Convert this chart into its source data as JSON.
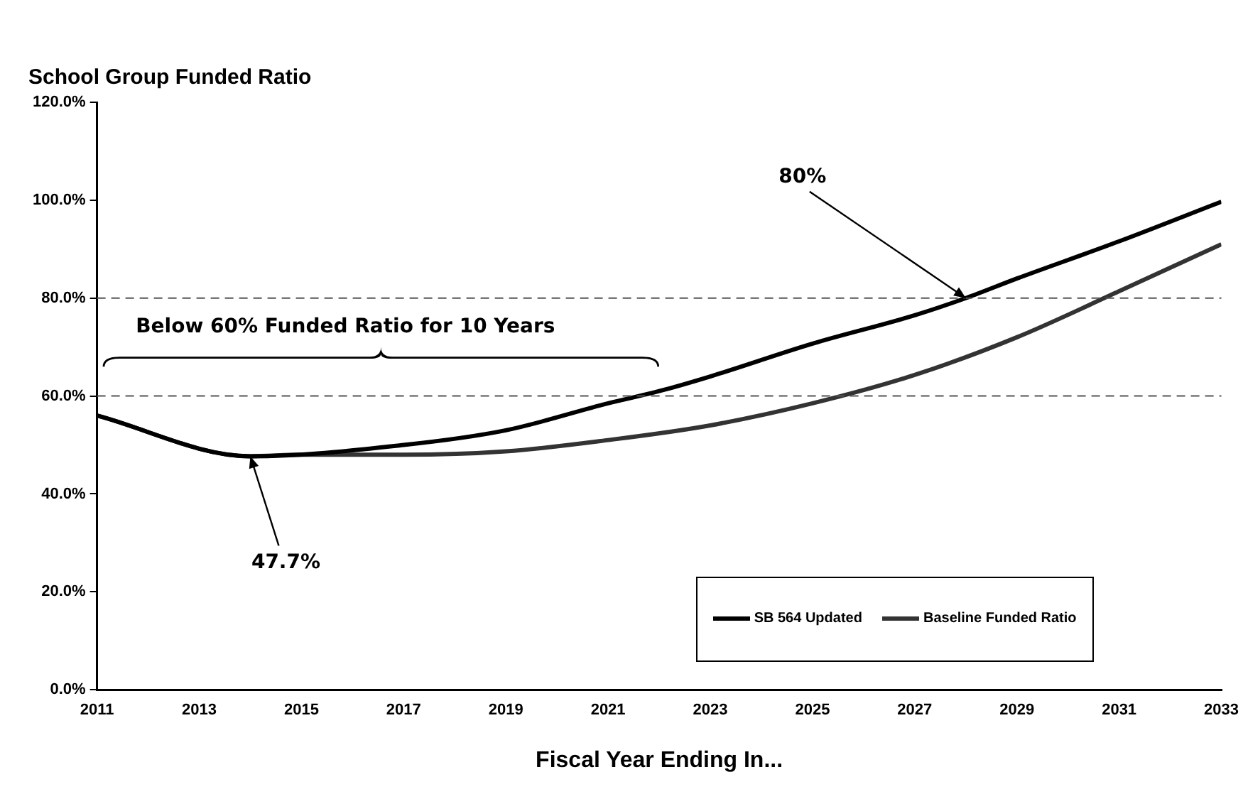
{
  "chart_data": {
    "type": "line",
    "title": "School Group Funded Ratio",
    "xlabel": "Fiscal Year Ending In...",
    "xlim": [
      2011,
      2033
    ],
    "xticks": [
      2011,
      2013,
      2015,
      2017,
      2019,
      2021,
      2023,
      2025,
      2027,
      2029,
      2031,
      2033
    ],
    "ylim": [
      0,
      120
    ],
    "yticks": [
      {
        "value": 0,
        "label": "0.0%"
      },
      {
        "value": 20,
        "label": "20.0%"
      },
      {
        "value": 40,
        "label": "40.0%"
      },
      {
        "value": 60,
        "label": "60.0%"
      },
      {
        "value": 80,
        "label": "80.0%"
      },
      {
        "value": 100,
        "label": "100.0%"
      },
      {
        "value": 120,
        "label": "120.0%"
      }
    ],
    "grid": false,
    "legend": "bottom right",
    "marker": "none",
    "line_style": "solid",
    "series": [
      {
        "name": "SB 564 Updated",
        "color": "#000000",
        "x": [
          2011,
          2014,
          2017,
          2019,
          2021,
          2022,
          2023,
          2025,
          2027,
          2028,
          2029,
          2031,
          2033
        ],
        "values": [
          56,
          47.7,
          50,
          53,
          58.5,
          61,
          64,
          70.7,
          76.5,
          80,
          84,
          91.6,
          99.7
        ]
      },
      {
        "name": "Baseline Funded Ratio",
        "color": "#333333",
        "x": [
          2011,
          2014,
          2015,
          2017,
          2019,
          2021,
          2023,
          2025,
          2027,
          2029,
          2031,
          2033
        ],
        "values": [
          56,
          47.7,
          48,
          48,
          48.7,
          51,
          54,
          58.5,
          64.3,
          72,
          81.4,
          91
        ]
      }
    ],
    "ref_lines": [
      {
        "axis": "y",
        "value": 60,
        "color": "#555555",
        "line_style": "dashed"
      },
      {
        "axis": "y",
        "value": 80,
        "color": "#555555",
        "line_style": "dashed"
      }
    ],
    "annotations": [
      {
        "text": "80%",
        "x": 2028,
        "y": 80
      },
      {
        "text": "47.7%",
        "x": 2014,
        "y": 47.7
      },
      "Below 60% Funded Ratio for 10 Years"
    ]
  }
}
